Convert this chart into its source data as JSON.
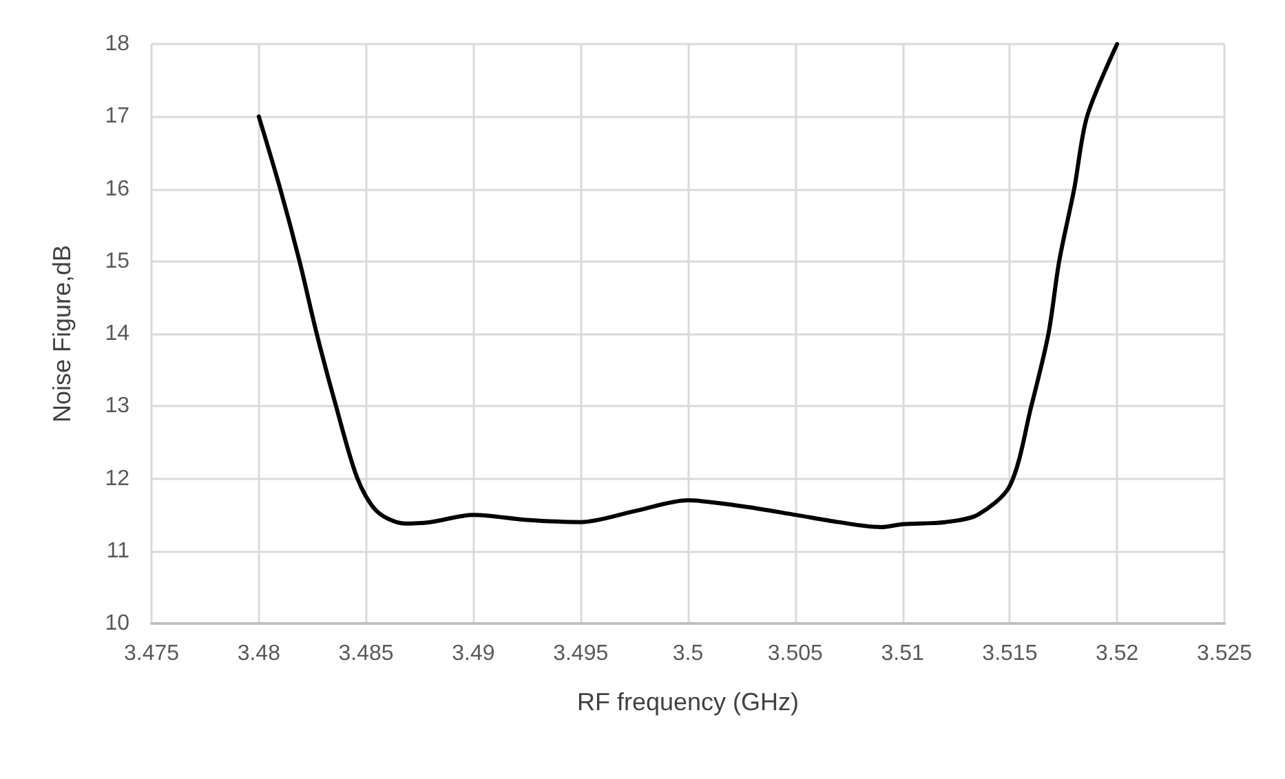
{
  "chart_data": {
    "type": "line",
    "xlabel": "RF frequency (GHz)",
    "ylabel": "Noise Figure,dB",
    "x": [
      3.48,
      3.481,
      3.4819,
      3.4827,
      3.4836,
      3.4846,
      3.4855,
      3.4868,
      3.488,
      3.49,
      3.4925,
      3.495,
      3.4975,
      3.5,
      3.5025,
      3.505,
      3.507,
      3.509,
      3.51,
      3.512,
      3.5135,
      3.515,
      3.516,
      3.5168,
      3.5173,
      3.518,
      3.5186,
      3.52
    ],
    "series": [
      {
        "color": "#000000",
        "values": [
          17,
          16,
          15,
          14,
          13,
          12,
          11.55,
          11.38,
          11.4,
          11.5,
          11.43,
          11.4,
          11.55,
          11.7,
          11.62,
          11.5,
          11.4,
          11.33,
          11.37,
          11.4,
          11.5,
          11.9,
          13,
          14,
          15,
          16,
          17,
          18
        ]
      }
    ],
    "xlim": [
      3.475,
      3.525
    ],
    "xticks": [
      3.475,
      3.48,
      3.485,
      3.49,
      3.495,
      3.5,
      3.505,
      3.51,
      3.515,
      3.52,
      3.525
    ],
    "ylim": [
      10,
      18
    ],
    "yticks": [
      10,
      11,
      12,
      13,
      14,
      15,
      16,
      17,
      18
    ],
    "grid": true,
    "marker": "none",
    "line_style": "solid"
  }
}
